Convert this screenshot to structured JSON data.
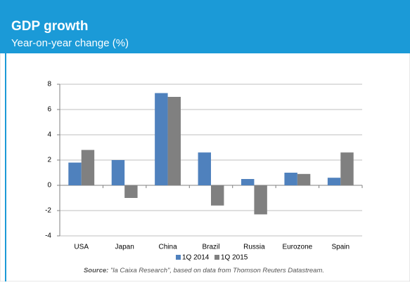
{
  "header": {
    "title": "GDP growth",
    "subtitle": "Year-on-year change (%)"
  },
  "chart_data": {
    "type": "bar",
    "categories": [
      "USA",
      "Japan",
      "China",
      "Brazil",
      "Russia",
      "Eurozone",
      "Spain"
    ],
    "series": [
      {
        "name": "1Q 2014",
        "color": "#4f81bd",
        "values": [
          1.8,
          2.0,
          7.3,
          2.6,
          0.5,
          1.0,
          0.6
        ]
      },
      {
        "name": "1Q 2015",
        "color": "#808080",
        "values": [
          2.8,
          -1.0,
          7.0,
          -1.6,
          -2.3,
          0.9,
          2.6
        ]
      }
    ],
    "ylim": [
      -4,
      8
    ],
    "yticks": [
      -4,
      -2,
      0,
      2,
      4,
      6,
      8
    ],
    "grid": true,
    "legend": "bottom"
  },
  "source": {
    "label": "Source:",
    "text": "\"la Caixa Research\", based on data from Thomson Reuters Datastream."
  }
}
